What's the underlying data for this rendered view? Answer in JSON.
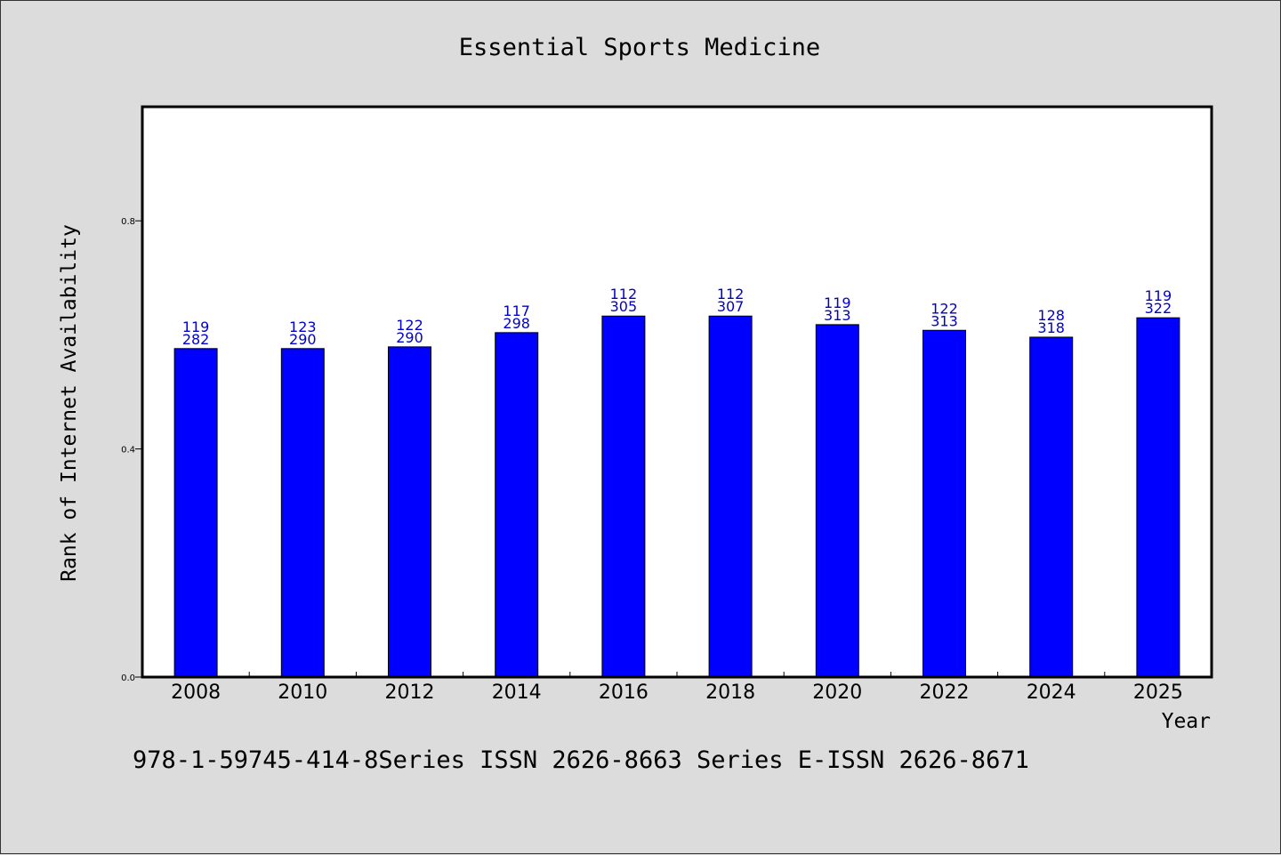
{
  "chart_data": {
    "type": "bar",
    "title": "Essential Sports Medicine",
    "xlabel": "Year",
    "ylabel": "Rank of Internet Availability",
    "ylim": [
      0,
      1.0
    ],
    "yticks": [
      "0.0",
      "0.4",
      "0.8"
    ],
    "ytick_values": [
      0.0,
      0.4,
      0.8
    ],
    "grid": false,
    "bar_color": "#0000ff",
    "label_color": "#0000cc",
    "categories": [
      "2008",
      "2010",
      "2012",
      "2014",
      "2016",
      "2018",
      "2020",
      "2022",
      "2024",
      "2025"
    ],
    "values": [
      0.576,
      0.576,
      0.579,
      0.604,
      0.633,
      0.633,
      0.618,
      0.608,
      0.596,
      0.63
    ],
    "labels_top": [
      "119",
      "123",
      "122",
      "117",
      "112",
      "112",
      "119",
      "122",
      "128",
      "119"
    ],
    "labels_bottom": [
      "282",
      "290",
      "290",
      "298",
      "305",
      "307",
      "313",
      "313",
      "318",
      "322"
    ]
  },
  "footer": {
    "text": "978-1-59745-414-8Series ISSN 2626-8663 Series E-ISSN 2626-8671"
  }
}
